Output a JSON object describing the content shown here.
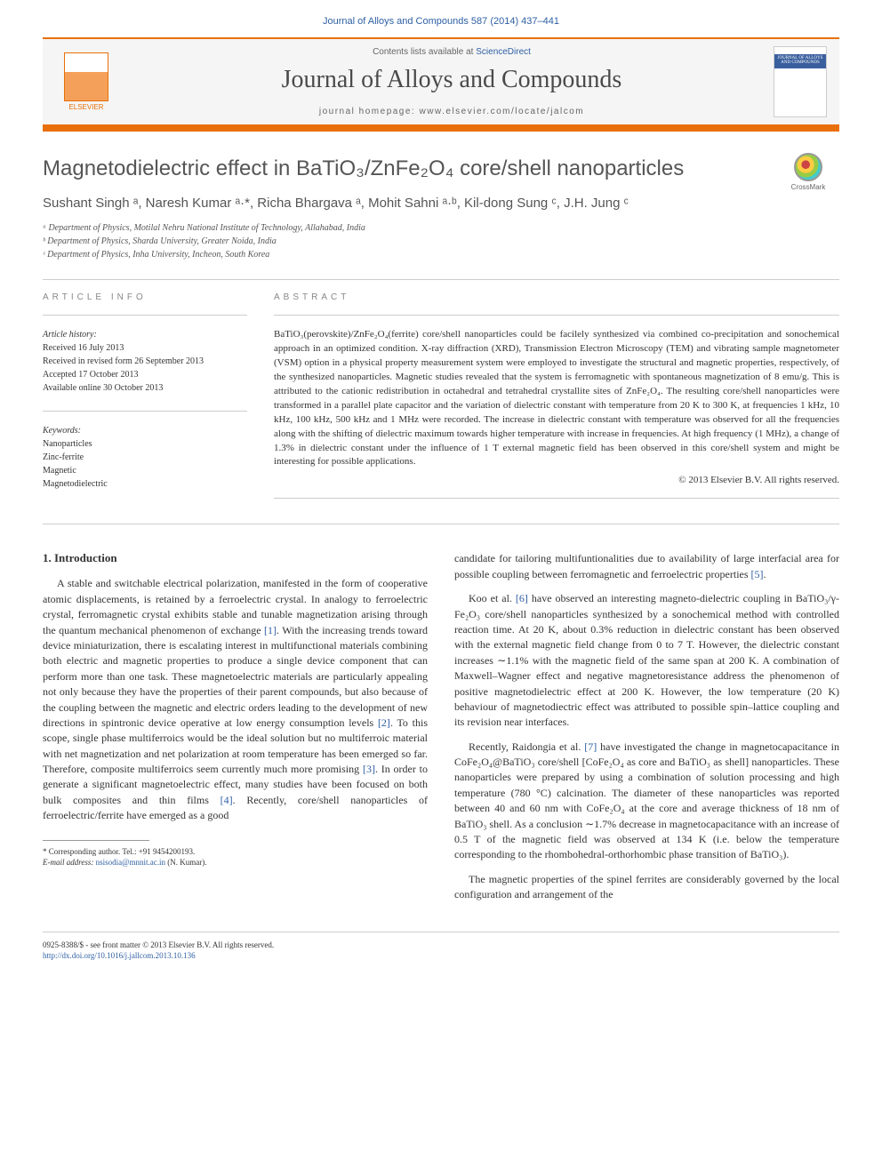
{
  "header": {
    "citation": "Journal of Alloys and Compounds 587 (2014) 437–441",
    "contents_prefix": "Contents lists available at ",
    "contents_link": "ScienceDirect",
    "journal_name": "Journal of Alloys and Compounds",
    "homepage": "journal homepage: www.elsevier.com/locate/jalcom",
    "elsevier": "ELSEVIER",
    "cover_title": "JOURNAL OF ALLOYS AND COMPOUNDS"
  },
  "crossmark": "CrossMark",
  "article": {
    "title": "Magnetodielectric effect in BaTiO₃/ZnFe₂O₄ core/shell nanoparticles",
    "authors": "Sushant Singh ᵃ, Naresh Kumar ᵃ·*, Richa Bhargava ᵃ, Mohit Sahni ᵃ·ᵇ, Kil-dong Sung ᶜ, J.H. Jung ᶜ",
    "affiliations": {
      "a": "ᵃ Department of Physics, Motilal Nehru National Institute of Technology, Allahabad, India",
      "b": "ᵇ Department of Physics, Sharda University, Greater Noida, India",
      "c": "ᶜ Department of Physics, Inha University, Incheon, South Korea"
    }
  },
  "info": {
    "label": "ARTICLE INFO",
    "history_label": "Article history:",
    "history": {
      "received": "Received 16 July 2013",
      "revised": "Received in revised form 26 September 2013",
      "accepted": "Accepted 17 October 2013",
      "online": "Available online 30 October 2013"
    },
    "keywords_label": "Keywords:",
    "keywords": [
      "Nanoparticles",
      "Zinc-ferrite",
      "Magnetic",
      "Magnetodielectric"
    ]
  },
  "abstract": {
    "label": "ABSTRACT",
    "text": "BaTiO₃(perovskite)/ZnFe₂O₄(ferrite) core/shell nanoparticles could be facilely synthesized via combined co-precipitation and sonochemical approach in an optimized condition. X-ray diffraction (XRD), Transmission Electron Microscopy (TEM) and vibrating sample magnetometer (VSM) option in a physical property measurement system were employed to investigate the structural and magnetic properties, respectively, of the synthesized nanoparticles. Magnetic studies revealed that the system is ferromagnetic with spontaneous magnetization of 8 emu/g. This is attributed to the cationic redistribution in octahedral and tetrahedral crystallite sites of ZnFe₂O₄. The resulting core/shell nanoparticles were transformed in a parallel plate capacitor and the variation of dielectric constant with temperature from 20 K to 300 K, at frequencies 1 kHz, 10 kHz, 100 kHz, 500 kHz and 1 MHz were recorded. The increase in dielectric constant with temperature was observed for all the frequencies along with the shifting of dielectric maximum towards higher temperature with increase in frequencies. At high frequency (1 MHz), a change of 1.3% in dielectric constant under the influence of 1 T external magnetic field has been observed in this core/shell system and might be interesting for possible applications.",
    "copyright": "© 2013 Elsevier B.V. All rights reserved."
  },
  "body": {
    "heading1": "1. Introduction",
    "col1_p1": "A stable and switchable electrical polarization, manifested in the form of cooperative atomic displacements, is retained by a ferroelectric crystal. In analogy to ferroelectric crystal, ferromagnetic crystal exhibits stable and tunable magnetization arising through the quantum mechanical phenomenon of exchange [1]. With the increasing trends toward device miniaturization, there is escalating interest in multifunctional materials combining both electric and magnetic properties to produce a single device component that can perform more than one task. These magnetoelectric materials are particularly appealing not only because they have the properties of their parent compounds, but also because of the coupling between the magnetic and electric orders leading to the development of new directions in spintronic device operative at low energy consumption levels [2]. To this scope, single phase multiferroics would be the ideal solution but no multiferroic material with net magnetization and net polarization at room temperature has been emerged so far. Therefore, composite multiferroics seem currently much more promising [3]. In order to generate a significant magnetoelectric effect, many studies have been focused on both bulk composites and thin films [4]. Recently, core/shell nanoparticles of ferroelectric/ferrite have emerged as a good",
    "col2_p1": "candidate for tailoring multifuntionalities due to availability of large interfacial area for possible coupling between ferromagnetic and ferroelectric properties [5].",
    "col2_p2": "Koo et al. [6] have observed an interesting magneto-dielectric coupling in BaTiO₃/γ-Fe₂O₃ core/shell nanoparticles synthesized by a sonochemical method with controlled reaction time. At 20 K, about 0.3% reduction in dielectric constant has been observed with the external magnetic field change from 0 to 7 T. However, the dielectric constant increases ∼1.1% with the magnetic field of the same span at 200 K. A combination of Maxwell–Wagner effect and negative magnetoresistance address the phenomenon of positive magnetodielectric effect at 200 K. However, the low temperature (20 K) behaviour of magnetodiectric effect was attributed to possible spin–lattice coupling and its revision near interfaces.",
    "col2_p3": "Recently, Raidongia et al. [7] have investigated the change in magnetocapacitance in CoFe₂O₄@BaTiO₃ core/shell [CoFe₂O₄ as core and BaTiO₃ as shell] nanoparticles. These nanoparticles were prepared by using a combination of solution processing and high temperature (780 °C) calcination. The diameter of these nanoparticles was reported between 40 and 60 nm with CoFe₂O₄ at the core and average thickness of 18 nm of BaTiO₃ shell. As a conclusion ∼1.7% decrease in magnetocapacitance with an increase of 0.5 T of the magnetic field was observed at 134 K (i.e. below the temperature corresponding to the rhombohedral-orthorhombic phase transition of BaTiO₃).",
    "col2_p4": "The magnetic properties of the spinel ferrites are considerably governed by the local configuration and arrangement of the"
  },
  "footnote": {
    "corr": "* Corresponding author. Tel.: +91 9454200193.",
    "email_label": "E-mail address: ",
    "email": "nsisodia@mnnit.ac.in",
    "email_suffix": " (N. Kumar)."
  },
  "footer": {
    "line1": "0925-8388/$ - see front matter © 2013 Elsevier B.V. All rights reserved.",
    "doi": "http://dx.doi.org/10.1016/j.jallcom.2013.10.136"
  },
  "colors": {
    "orange": "#e8700a",
    "link": "#2e5fa3",
    "text": "#333333",
    "muted": "#888888"
  }
}
